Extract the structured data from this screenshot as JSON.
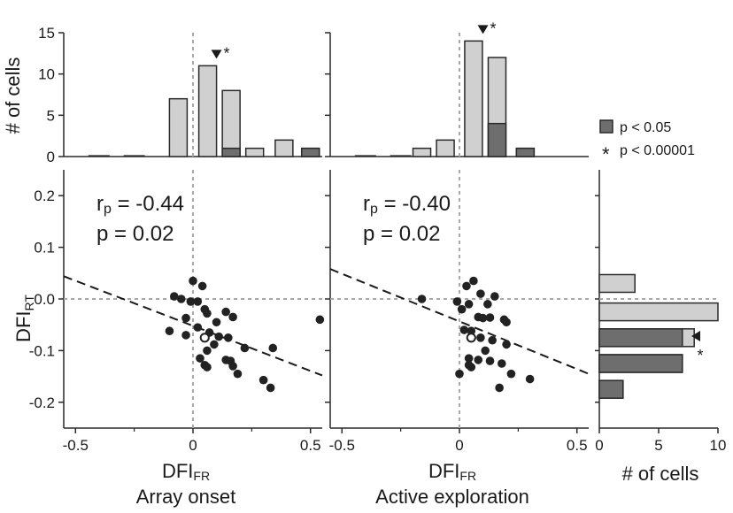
{
  "chart_data": {
    "type": "scatter",
    "colors": {
      "light": "#d0d0d0",
      "dark": "#6e6e6e",
      "edge": "#2a2a2a",
      "dot": "#222222",
      "guide": "#a8a8a8"
    },
    "legend": {
      "placement": "right",
      "sig_label": "p < 0.05",
      "star_symbol": "*",
      "star_label": "p < 0.00001"
    },
    "shared": {
      "ylabel_main": "DFI",
      "ylabel_sub": "RT",
      "xlabel_main": "DFI",
      "xlabel_sub": "FR",
      "hist_ylabel": "# of cells",
      "x_ticks": [
        "-0.5",
        "0",
        "0.5"
      ],
      "y_ticks": [
        "0.2",
        "0.1",
        "0.0",
        "-0.1",
        "-0.2"
      ],
      "y_tick_values": [
        0.2,
        0.1,
        0.0,
        -0.1,
        -0.2
      ],
      "xlim": [
        -0.55,
        0.55
      ],
      "ylim": [
        -0.25,
        0.25
      ],
      "hist_y_ticks": [
        "15",
        "10",
        "5",
        "0"
      ],
      "hist_y_values": [
        15,
        10,
        5,
        0
      ],
      "hist_ylim": [
        0,
        15
      ]
    },
    "panels": [
      {
        "name": "Array onset",
        "r_label": "r",
        "r_sub": "p",
        "r_value": " = -0.44",
        "p_text": "p = 0.02",
        "fit": {
          "x0": -0.55,
          "y0": 0.044,
          "x1": 0.55,
          "y1": -0.148
        },
        "median": {
          "x": 0.05,
          "y": -0.075
        },
        "hist_marker": {
          "x": 0.1,
          "symbol": "*"
        },
        "hist": [
          {
            "center": -0.0625,
            "total": 7,
            "sig": 0
          },
          {
            "center": 0.0625,
            "total": 11,
            "sig": 0
          },
          {
            "center": 0.1625,
            "total": 8,
            "sig": 1
          },
          {
            "center": 0.2625,
            "total": 1,
            "sig": 0
          },
          {
            "center": 0.3875,
            "total": 2,
            "sig": 0
          },
          {
            "center": 0.5,
            "total": 1,
            "sig": 1
          }
        ],
        "points": [
          [
            0.0,
            0.035
          ],
          [
            0.04,
            0.025
          ],
          [
            -0.08,
            0.005
          ],
          [
            -0.05,
            0.0
          ],
          [
            -0.01,
            -0.005
          ],
          [
            0.02,
            -0.005
          ],
          [
            0.05,
            -0.02
          ],
          [
            0.06,
            -0.028
          ],
          [
            -0.03,
            -0.037
          ],
          [
            0.14,
            -0.025
          ],
          [
            0.17,
            -0.035
          ],
          [
            0.1,
            -0.045
          ],
          [
            0.02,
            -0.055
          ],
          [
            0.07,
            -0.065
          ],
          [
            -0.1,
            -0.062
          ],
          [
            -0.03,
            -0.07
          ],
          [
            0.11,
            -0.073
          ],
          [
            0.15,
            -0.075
          ],
          [
            0.09,
            -0.088
          ],
          [
            0.22,
            -0.095
          ],
          [
            0.34,
            -0.095
          ],
          [
            0.06,
            -0.1
          ],
          [
            0.03,
            -0.115
          ],
          [
            0.14,
            -0.118
          ],
          [
            0.16,
            -0.12
          ],
          [
            0.17,
            -0.13
          ],
          [
            0.05,
            -0.128
          ],
          [
            0.06,
            -0.132
          ],
          [
            0.19,
            -0.145
          ],
          [
            0.3,
            -0.157
          ],
          [
            0.33,
            -0.172
          ],
          [
            0.54,
            -0.04
          ]
        ]
      },
      {
        "name": "Active exploration",
        "r_label": "r",
        "r_sub": "p",
        "r_value": " = -0.40",
        "p_text": "p = 0.02",
        "fit": {
          "x0": -0.55,
          "y0": 0.058,
          "x1": 0.55,
          "y1": -0.145
        },
        "median": {
          "x": 0.05,
          "y": -0.075
        },
        "hist_marker": {
          "x": 0.1,
          "symbol": "*"
        },
        "hist": [
          {
            "center": -0.16,
            "total": 1,
            "sig": 0
          },
          {
            "center": -0.06,
            "total": 2,
            "sig": 0
          },
          {
            "center": 0.06,
            "total": 14,
            "sig": 0
          },
          {
            "center": 0.16,
            "total": 12,
            "sig": 4
          },
          {
            "center": 0.28,
            "total": 1,
            "sig": 1
          }
        ],
        "points": [
          [
            0.06,
            0.035
          ],
          [
            0.03,
            0.025
          ],
          [
            -0.16,
            0.0
          ],
          [
            0.09,
            0.01
          ],
          [
            0.15,
            0.005
          ],
          [
            -0.01,
            -0.005
          ],
          [
            0.04,
            -0.01
          ],
          [
            0.12,
            -0.01
          ],
          [
            0.01,
            -0.02
          ],
          [
            0.08,
            -0.035
          ],
          [
            0.1,
            -0.037
          ],
          [
            0.13,
            -0.036
          ],
          [
            0.19,
            -0.04
          ],
          [
            0.2,
            -0.045
          ],
          [
            0.02,
            -0.06
          ],
          [
            0.05,
            -0.062
          ],
          [
            0.09,
            -0.075
          ],
          [
            0.14,
            -0.08
          ],
          [
            0.2,
            -0.088
          ],
          [
            0.11,
            -0.1
          ],
          [
            0.04,
            -0.115
          ],
          [
            0.08,
            -0.118
          ],
          [
            0.13,
            -0.12
          ],
          [
            0.18,
            -0.125
          ],
          [
            0.04,
            -0.128
          ],
          [
            0.05,
            -0.132
          ],
          [
            0.22,
            -0.145
          ],
          [
            0.3,
            -0.155
          ],
          [
            0.17,
            -0.172
          ],
          [
            0.0,
            -0.145
          ]
        ]
      }
    ],
    "right_hist": {
      "xlabel": "# of cells",
      "x_ticks": [
        "0",
        "5",
        "10"
      ],
      "x_tick_values": [
        0,
        5,
        10
      ],
      "xlim": [
        0,
        10
      ],
      "marker_symbol": "*",
      "bars": [
        {
          "center": 0.03,
          "total": 3,
          "sig": 0
        },
        {
          "center": -0.025,
          "total": 10,
          "sig": 0
        },
        {
          "center": -0.075,
          "total": 8,
          "sig": 7
        },
        {
          "center": -0.125,
          "total": 7,
          "sig": 7
        },
        {
          "center": -0.175,
          "total": 2,
          "sig": 2
        }
      ]
    }
  }
}
